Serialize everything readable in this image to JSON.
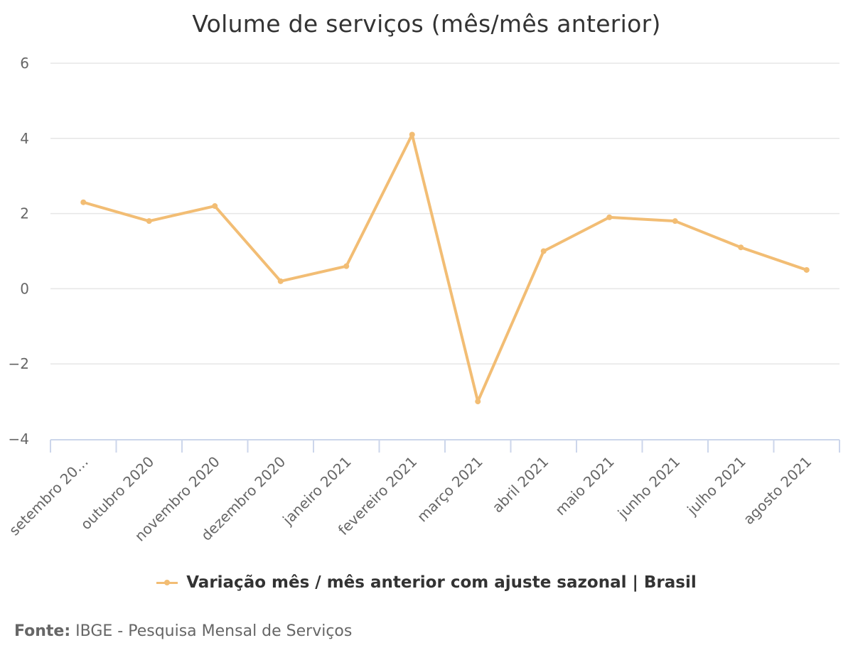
{
  "chart_data": {
    "type": "line",
    "title": "Volume de serviços (mês/mês anterior)",
    "categories": [
      "setembro 20…",
      "outubro 2020",
      "novembro 2020",
      "dezembro 2020",
      "janeiro 2021",
      "fevereiro 2021",
      "março 2021",
      "abril 2021",
      "maio 2021",
      "junho 2021",
      "julho 2021",
      "agosto 2021"
    ],
    "series": [
      {
        "name": "Variação mês / mês anterior com ajuste sazonal | Brasil",
        "values": [
          2.3,
          1.8,
          2.2,
          0.2,
          0.6,
          4.1,
          -3.0,
          1.0,
          1.9,
          1.8,
          1.1,
          0.5
        ]
      }
    ],
    "yticks": [
      "6",
      "4",
      "2",
      "0",
      "−2",
      "−4"
    ],
    "ylim": [
      -4,
      6
    ],
    "grid": true,
    "legend_position": "bottom",
    "colors": {
      "series": "#f2bd74",
      "grid": "#e6e6e6",
      "axis": "#ccd6eb",
      "tick_text": "#666666"
    }
  },
  "source": {
    "label": "Fonte:",
    "text": "IBGE - Pesquisa Mensal de Serviços"
  }
}
